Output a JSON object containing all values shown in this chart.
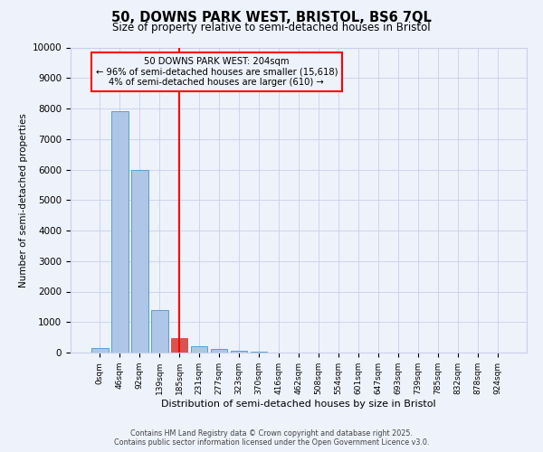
{
  "title_line1": "50, DOWNS PARK WEST, BRISTOL, BS6 7QL",
  "title_line2": "Size of property relative to semi-detached houses in Bristol",
  "xlabel": "Distribution of semi-detached houses by size in Bristol",
  "ylabel": "Number of semi-detached properties",
  "bar_labels": [
    "0sqm",
    "46sqm",
    "92sqm",
    "139sqm",
    "185sqm",
    "231sqm",
    "277sqm",
    "323sqm",
    "370sqm",
    "416sqm",
    "462sqm",
    "508sqm",
    "554sqm",
    "601sqm",
    "647sqm",
    "693sqm",
    "739sqm",
    "785sqm",
    "832sqm",
    "878sqm",
    "924sqm"
  ],
  "bar_values": [
    150,
    7900,
    6000,
    1400,
    480,
    220,
    130,
    60,
    20,
    5,
    2,
    1,
    0,
    0,
    0,
    0,
    0,
    0,
    0,
    0,
    0
  ],
  "bar_color": "#aec6e8",
  "bar_edge_color": "#5a9fd4",
  "highlight_bar_index": 4,
  "highlight_bar_color": "#d9534f",
  "highlight_bar_edge_color": "#d9534f",
  "red_line_x": 4,
  "annotation_box_text": "50 DOWNS PARK WEST: 204sqm\n← 96% of semi-detached houses are smaller (15,618)\n4% of semi-detached houses are larger (610) →",
  "ylim": [
    0,
    10000
  ],
  "yticks": [
    0,
    1000,
    2000,
    3000,
    4000,
    5000,
    6000,
    7000,
    8000,
    9000,
    10000
  ],
  "background_color": "#eef2fb",
  "grid_color": "#c8d0e8",
  "footer_line1": "Contains HM Land Registry data © Crown copyright and database right 2025.",
  "footer_line2": "Contains public sector information licensed under the Open Government Licence v3.0."
}
